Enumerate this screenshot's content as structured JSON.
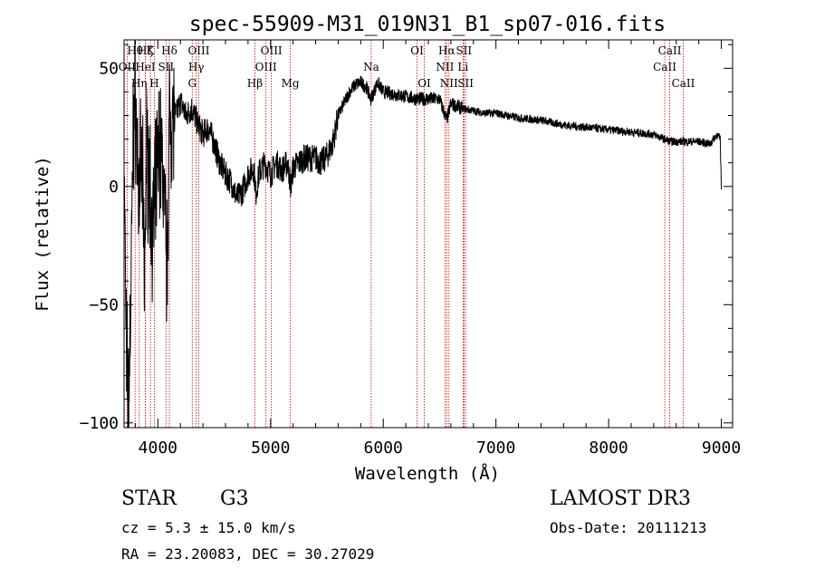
{
  "chart_data": {
    "type": "line",
    "title": "spec-55909-M31_019N31_B1_sp07-016.fits",
    "xlabel": "Wavelength (Å)",
    "ylabel": "Flux (relative)",
    "xlim": [
      3700,
      9100
    ],
    "ylim": [
      -102,
      62
    ],
    "xticks": [
      4000,
      5000,
      6000,
      7000,
      8000,
      9000
    ],
    "yticks": [
      -100,
      -50,
      0,
      50
    ],
    "ytick_labels": [
      "−100",
      "−50",
      "0",
      "50"
    ],
    "spectrum_anchor_points": [
      [
        3700,
        10
      ],
      [
        3720,
        -70
      ],
      [
        3740,
        -90
      ],
      [
        3760,
        -50
      ],
      [
        3780,
        20
      ],
      [
        3800,
        40
      ],
      [
        3830,
        -5
      ],
      [
        3860,
        10
      ],
      [
        3880,
        -40
      ],
      [
        3900,
        15
      ],
      [
        3930,
        0
      ],
      [
        3960,
        -20
      ],
      [
        3990,
        5
      ],
      [
        4020,
        20
      ],
      [
        4050,
        0
      ],
      [
        4080,
        -35
      ],
      [
        4100,
        25
      ],
      [
        4130,
        33
      ],
      [
        4160,
        30
      ],
      [
        4200,
        36
      ],
      [
        4250,
        30
      ],
      [
        4300,
        33
      ],
      [
        4350,
        27
      ],
      [
        4400,
        22
      ],
      [
        4450,
        25
      ],
      [
        4500,
        18
      ],
      [
        4550,
        10
      ],
      [
        4600,
        5
      ],
      [
        4650,
        2
      ],
      [
        4700,
        -5
      ],
      [
        4750,
        -2
      ],
      [
        4800,
        5
      ],
      [
        4850,
        8
      ],
      [
        4870,
        -3
      ],
      [
        4900,
        6
      ],
      [
        4950,
        10
      ],
      [
        5000,
        5
      ],
      [
        5050,
        10
      ],
      [
        5100,
        7
      ],
      [
        5150,
        10
      ],
      [
        5180,
        0
      ],
      [
        5200,
        8
      ],
      [
        5300,
        12
      ],
      [
        5400,
        12
      ],
      [
        5450,
        10
      ],
      [
        5500,
        13
      ],
      [
        5550,
        18
      ],
      [
        5600,
        30
      ],
      [
        5650,
        35
      ],
      [
        5700,
        40
      ],
      [
        5750,
        43
      ],
      [
        5800,
        44
      ],
      [
        5850,
        42
      ],
      [
        5890,
        37
      ],
      [
        5950,
        44
      ],
      [
        6000,
        40
      ],
      [
        6100,
        39
      ],
      [
        6200,
        38
      ],
      [
        6300,
        37
      ],
      [
        6400,
        37
      ],
      [
        6500,
        37
      ],
      [
        6563,
        28
      ],
      [
        6600,
        35
      ],
      [
        6700,
        33
      ],
      [
        6800,
        32
      ],
      [
        6900,
        31
      ],
      [
        7000,
        31
      ],
      [
        7200,
        29
      ],
      [
        7400,
        28
      ],
      [
        7600,
        26
      ],
      [
        7800,
        25
      ],
      [
        8000,
        24
      ],
      [
        8200,
        23
      ],
      [
        8400,
        22
      ],
      [
        8498,
        20
      ],
      [
        8542,
        19
      ],
      [
        8662,
        19
      ],
      [
        8800,
        19
      ],
      [
        8900,
        18
      ],
      [
        8960,
        22
      ],
      [
        8990,
        20
      ],
      [
        9000,
        0
      ]
    ],
    "spectral_lines": [
      {
        "label": "Hθ",
        "wavelength": 3798,
        "row": 0
      },
      {
        "label": "OII",
        "wavelength": 3727,
        "row": 1
      },
      {
        "label": "Hη",
        "wavelength": 3835,
        "row": 2
      },
      {
        "label": "Hζ",
        "wavelength": 3889,
        "row": 0
      },
      {
        "label": "HeI",
        "wavelength": 3889,
        "row": 1
      },
      {
        "label": "K",
        "wavelength": 3934,
        "row": 0
      },
      {
        "label": "H",
        "wavelength": 3968,
        "row": 2
      },
      {
        "label": "SII",
        "wavelength": 4072,
        "row": 1
      },
      {
        "label": "Hδ",
        "wavelength": 4102,
        "row": 0
      },
      {
        "label": "OIII",
        "wavelength": 4363,
        "row": 0
      },
      {
        "label": "Hγ",
        "wavelength": 4340,
        "row": 1
      },
      {
        "label": "G",
        "wavelength": 4305,
        "row": 2
      },
      {
        "label": "Hβ",
        "wavelength": 4861,
        "row": 2
      },
      {
        "label": "OIII",
        "wavelength": 5007,
        "row": 0
      },
      {
        "label": "OIII",
        "wavelength": 4959,
        "row": 1
      },
      {
        "label": "Mg",
        "wavelength": 5175,
        "row": 2
      },
      {
        "label": "Na",
        "wavelength": 5893,
        "row": 1
      },
      {
        "label": "OI",
        "wavelength": 6300,
        "row": 0
      },
      {
        "label": "OI",
        "wavelength": 6364,
        "row": 2
      },
      {
        "label": "Hα",
        "wavelength": 6563,
        "row": 0
      },
      {
        "label": "NII",
        "wavelength": 6548,
        "row": 1
      },
      {
        "label": "NII",
        "wavelength": 6583,
        "row": 2
      },
      {
        "label": "SII",
        "wavelength": 6716,
        "row": 0
      },
      {
        "label": "Li",
        "wavelength": 6708,
        "row": 1
      },
      {
        "label": "SII",
        "wavelength": 6731,
        "row": 2
      },
      {
        "label": "CaII",
        "wavelength": 8542,
        "row": 0
      },
      {
        "label": "CaII",
        "wavelength": 8498,
        "row": 1
      },
      {
        "label": "CaII",
        "wavelength": 8662,
        "row": 2
      }
    ]
  },
  "info": {
    "class": "STAR",
    "subclass": "G3",
    "survey": "LAMOST DR3",
    "cz_text": "cz = 5.3 ± 15.0 km/s",
    "obs_date_text": "Obs-Date: 20111213",
    "radec_text": "RA =  23.20083, DEC =  30.27029"
  },
  "colors": {
    "spectrum": "#000000",
    "line_markers": "#cc0000",
    "axes": "#000000"
  }
}
